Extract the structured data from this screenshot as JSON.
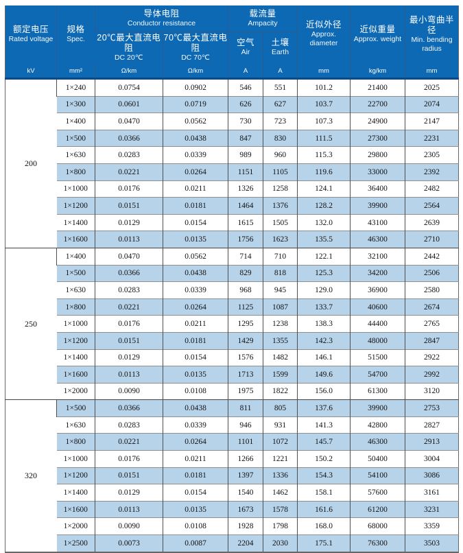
{
  "table": {
    "header": {
      "rated_voltage": {
        "zh": "额定电压",
        "en": "Rated voltage",
        "unit": "kV"
      },
      "spec": {
        "zh": "规格",
        "en": "Spec.",
        "unit": "mm²"
      },
      "conductor_resistance_group": {
        "zh": "导体电阻",
        "en": "Conductor resistance"
      },
      "dc20": {
        "zh": "20℃最大直流电阻",
        "en": "DC 20℃",
        "unit": "Ω/km"
      },
      "dc70": {
        "zh": "70℃最大直流电阻",
        "en": "DC 70℃",
        "unit": "Ω/km"
      },
      "ampacity_group": {
        "zh": "载流量",
        "en": "Ampacity"
      },
      "air": {
        "zh": "空气",
        "en": "Air",
        "unit": "A"
      },
      "earth": {
        "zh": "土壤",
        "en": "Earth",
        "unit": "A"
      },
      "diameter": {
        "zh": "近似外径",
        "en": "Approx. diameter",
        "unit": "mm"
      },
      "weight": {
        "zh": "近似重量",
        "en": "Approx. weight",
        "unit": "kg/km"
      },
      "bending": {
        "zh": "最小弯曲半径",
        "en": "Min. bending radius",
        "unit": "mm"
      }
    },
    "columns_order": [
      "spec",
      "dc20_resistance",
      "dc70_resistance",
      "ampacity_air",
      "ampacity_earth",
      "approx_diameter",
      "approx_weight",
      "min_bending_radius"
    ],
    "sections": [
      {
        "voltage": "200",
        "rows": [
          [
            "1×240",
            "0.0754",
            "0.0902",
            "546",
            "551",
            "101.2",
            "21400",
            "2025"
          ],
          [
            "1×300",
            "0.0601",
            "0.0719",
            "626",
            "627",
            "103.7",
            "22700",
            "2074"
          ],
          [
            "1×400",
            "0.0470",
            "0.0562",
            "730",
            "723",
            "107.3",
            "24900",
            "2147"
          ],
          [
            "1×500",
            "0.0366",
            "0.0438",
            "847",
            "830",
            "111.5",
            "27300",
            "2231"
          ],
          [
            "1×630",
            "0.0283",
            "0.0339",
            "989",
            "960",
            "115.3",
            "29800",
            "2305"
          ],
          [
            "1×800",
            "0.0221",
            "0.0264",
            "1151",
            "1105",
            "119.6",
            "33000",
            "2392"
          ],
          [
            "1×1000",
            "0.0176",
            "0.0211",
            "1326",
            "1258",
            "124.1",
            "36400",
            "2482"
          ],
          [
            "1×1200",
            "0.0151",
            "0.0181",
            "1464",
            "1376",
            "128.2",
            "39900",
            "2564"
          ],
          [
            "1×1400",
            "0.0129",
            "0.0154",
            "1615",
            "1505",
            "132.0",
            "43100",
            "2639"
          ],
          [
            "1×1600",
            "0.0113",
            "0.0135",
            "1756",
            "1623",
            "135.5",
            "46300",
            "2710"
          ]
        ]
      },
      {
        "voltage": "250",
        "rows": [
          [
            "1×400",
            "0.0470",
            "0.0562",
            "714",
            "710",
            "122.1",
            "32100",
            "2442"
          ],
          [
            "1×500",
            "0.0366",
            "0.0438",
            "829",
            "818",
            "125.3",
            "34200",
            "2506"
          ],
          [
            "1×630",
            "0.0283",
            "0.0339",
            "968",
            "945",
            "129.0",
            "36900",
            "2580"
          ],
          [
            "1×800",
            "0.0221",
            "0.0264",
            "1125",
            "1087",
            "133.7",
            "40600",
            "2674"
          ],
          [
            "1×1000",
            "0.0176",
            "0.0211",
            "1295",
            "1238",
            "138.3",
            "44400",
            "2765"
          ],
          [
            "1×1200",
            "0.0151",
            "0.0181",
            "1429",
            "1355",
            "142.3",
            "48000",
            "2847"
          ],
          [
            "1×1400",
            "0.0129",
            "0.0154",
            "1576",
            "1482",
            "146.1",
            "51500",
            "2922"
          ],
          [
            "1×1600",
            "0.0113",
            "0.0135",
            "1713",
            "1599",
            "149.6",
            "54700",
            "2992"
          ],
          [
            "1×2000",
            "0.0090",
            "0.0108",
            "1975",
            "1822",
            "156.0",
            "61300",
            "3120"
          ]
        ]
      },
      {
        "voltage": "320",
        "rows": [
          [
            "1×500",
            "0.0366",
            "0.0438",
            "811",
            "805",
            "137.6",
            "39900",
            "2753"
          ],
          [
            "1×630",
            "0.0283",
            "0.0339",
            "946",
            "931",
            "141.3",
            "42800",
            "2827"
          ],
          [
            "1×800",
            "0.0221",
            "0.0264",
            "1101",
            "1072",
            "145.7",
            "46300",
            "2913"
          ],
          [
            "1×1000",
            "0.0176",
            "0.0211",
            "1266",
            "1221",
            "150.2",
            "50400",
            "3004"
          ],
          [
            "1×1200",
            "0.0151",
            "0.0181",
            "1397",
            "1336",
            "154.3",
            "54100",
            "3086"
          ],
          [
            "1×1400",
            "0.0129",
            "0.0154",
            "1540",
            "1462",
            "158.1",
            "57600",
            "3161"
          ],
          [
            "1×1600",
            "0.0113",
            "0.0135",
            "1673",
            "1578",
            "161.6",
            "61200",
            "3231"
          ],
          [
            "1×2000",
            "0.0090",
            "0.0108",
            "1928",
            "1798",
            "168.0",
            "68000",
            "3359"
          ],
          [
            "1×2500",
            "0.0073",
            "0.0087",
            "2204",
            "2030",
            "175.1",
            "76300",
            "3503"
          ]
        ]
      }
    ],
    "colors": {
      "header_background": "#0e69b4",
      "header_divider": "#2a5c8e",
      "header_bottom_border": "#0b4a87",
      "shaded_row": "#b7d3ea"
    }
  }
}
